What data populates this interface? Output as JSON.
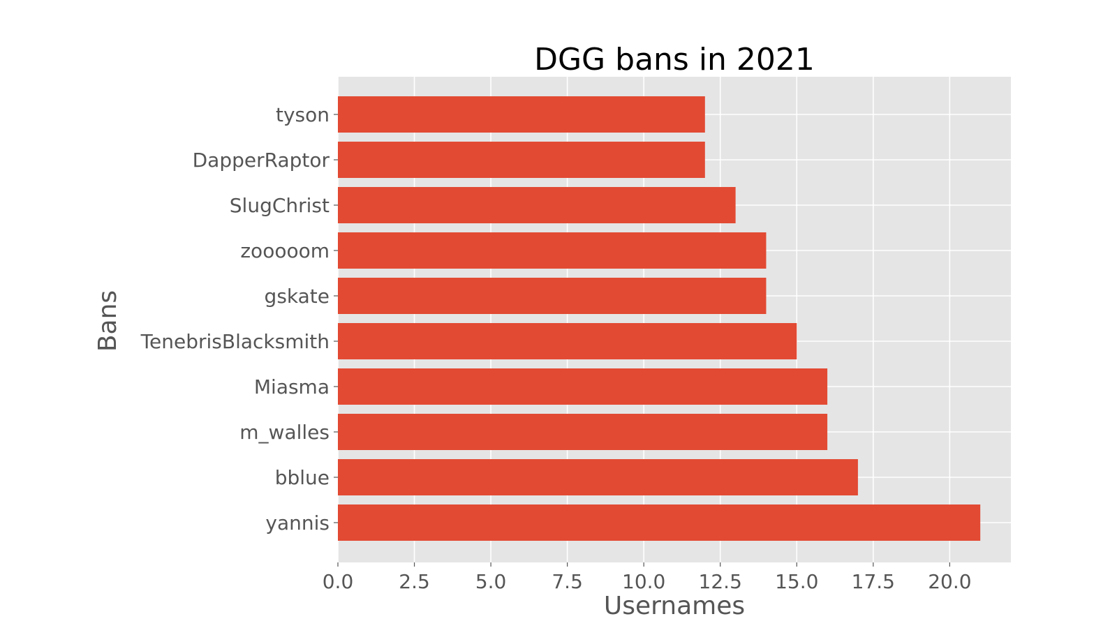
{
  "chart_data": {
    "type": "bar",
    "orientation": "horizontal",
    "title": "DGG bans in 2021",
    "xlabel": "Usernames",
    "ylabel": "Bans",
    "categories": [
      "yannis",
      "bblue",
      "m_walles",
      "Miasma",
      "TenebrisBlacksmith",
      "gskate",
      "zooooom",
      "SlugChrist",
      "DapperRaptor",
      "tyson"
    ],
    "values": [
      21,
      17,
      16,
      16,
      15,
      14,
      14,
      13,
      12,
      12
    ],
    "xlim": [
      0,
      22
    ],
    "xticks": [
      0.0,
      2.5,
      5.0,
      7.5,
      10.0,
      12.5,
      15.0,
      17.5,
      20.0
    ],
    "xtick_labels": [
      "0.0",
      "2.5",
      "5.0",
      "7.5",
      "10.0",
      "12.5",
      "15.0",
      "17.5",
      "20.0"
    ],
    "grid": true,
    "colors": {
      "bar": "#e24a33",
      "background": "#e5e5e5",
      "grid": "#ffffff"
    }
  }
}
